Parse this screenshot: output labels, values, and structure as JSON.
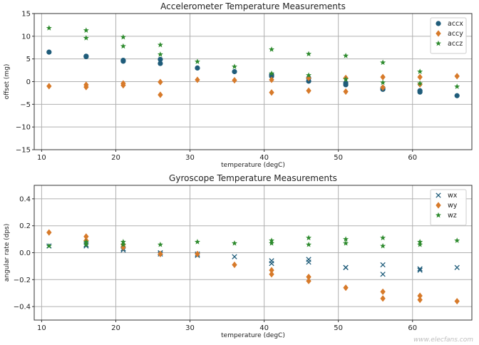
{
  "chart_data": [
    {
      "type": "scatter",
      "title": "Accelerometer Temperature Measurements",
      "xlabel": "temperature (degC)",
      "ylabel": "offset (mg)",
      "xlim": [
        9,
        68
      ],
      "ylim": [
        -15,
        15
      ],
      "xticks": [
        10,
        20,
        30,
        40,
        50,
        60
      ],
      "yticks": [
        15,
        10,
        5,
        0,
        -5,
        -10,
        -15
      ],
      "ytick_labels": [
        "15",
        "10",
        "5",
        "0",
        "−5",
        "−10",
        "−15"
      ],
      "legend_position": "top-right",
      "grid": true,
      "series": [
        {
          "name": "accx",
          "marker": "circle",
          "color": "#1f5c7a",
          "points": [
            [
              11,
              6.5
            ],
            [
              16,
              5.6
            ],
            [
              16,
              5.5
            ],
            [
              21,
              4.7
            ],
            [
              21,
              4.5
            ],
            [
              26,
              4.9
            ],
            [
              26,
              4.0
            ],
            [
              31,
              3.0
            ],
            [
              36,
              2.2
            ],
            [
              41,
              1.5
            ],
            [
              41,
              1.2
            ],
            [
              46,
              0.8
            ],
            [
              46,
              0.1
            ],
            [
              51,
              -0.3
            ],
            [
              51,
              -0.7
            ],
            [
              56,
              -1.4
            ],
            [
              56,
              -1.7
            ],
            [
              61,
              -2.0
            ],
            [
              61,
              -2.3
            ],
            [
              66,
              -3.1
            ]
          ]
        },
        {
          "name": "accy",
          "marker": "diamond",
          "color": "#d77a2a",
          "points": [
            [
              11,
              -1.0
            ],
            [
              16,
              -0.7
            ],
            [
              16,
              -1.2
            ],
            [
              21,
              -0.4
            ],
            [
              21,
              -0.8
            ],
            [
              26,
              -0.1
            ],
            [
              26,
              -2.9
            ],
            [
              31,
              0.4
            ],
            [
              36,
              0.3
            ],
            [
              41,
              0.4
            ],
            [
              41,
              -2.4
            ],
            [
              46,
              0.8
            ],
            [
              46,
              -2.0
            ],
            [
              51,
              0.8
            ],
            [
              51,
              -2.2
            ],
            [
              56,
              1.0
            ],
            [
              56,
              -1.3
            ],
            [
              61,
              1.0
            ],
            [
              61,
              -0.6
            ],
            [
              66,
              1.2
            ]
          ]
        },
        {
          "name": "accz",
          "marker": "star",
          "color": "#2e8b2e",
          "points": [
            [
              11,
              11.8
            ],
            [
              16,
              11.3
            ],
            [
              16,
              9.6
            ],
            [
              21,
              9.8
            ],
            [
              21,
              7.8
            ],
            [
              26,
              8.1
            ],
            [
              26,
              6.0
            ],
            [
              31,
              4.4
            ],
            [
              36,
              3.3
            ],
            [
              41,
              7.1
            ],
            [
              41,
              1.8
            ],
            [
              46,
              6.1
            ],
            [
              46,
              1.4
            ],
            [
              51,
              5.7
            ],
            [
              51,
              0.5
            ],
            [
              56,
              4.2
            ],
            [
              56,
              -0.2
            ],
            [
              61,
              2.2
            ],
            [
              61,
              -0.4
            ],
            [
              66,
              -1.1
            ]
          ]
        }
      ]
    },
    {
      "type": "scatter",
      "title": "Gyroscope Temperature Measurements",
      "xlabel": "temperature (degC)",
      "ylabel": "angular rate (dps)",
      "xlim": [
        9,
        68
      ],
      "ylim": [
        -0.5,
        0.5
      ],
      "xticks": [
        10,
        20,
        30,
        40,
        50,
        60
      ],
      "yticks": [
        0.4,
        0.2,
        0.0,
        -0.2,
        -0.4
      ],
      "ytick_labels": [
        "0.4",
        "0.2",
        "0.0",
        "−0.2",
        "−0.4"
      ],
      "legend_position": "top-right",
      "grid": true,
      "series": [
        {
          "name": "wx",
          "marker": "x",
          "color": "#1f5c7a",
          "points": [
            [
              11,
              0.05
            ],
            [
              16,
              0.06
            ],
            [
              16,
              0.05
            ],
            [
              21,
              0.03
            ],
            [
              21,
              0.02
            ],
            [
              26,
              0.0
            ],
            [
              26,
              -0.01
            ],
            [
              31,
              -0.01
            ],
            [
              31,
              -0.02
            ],
            [
              36,
              -0.03
            ],
            [
              41,
              -0.06
            ],
            [
              41,
              -0.08
            ],
            [
              46,
              -0.05
            ],
            [
              46,
              -0.07
            ],
            [
              51,
              -0.11
            ],
            [
              51,
              -0.11
            ],
            [
              56,
              -0.09
            ],
            [
              56,
              -0.16
            ],
            [
              61,
              -0.12
            ],
            [
              61,
              -0.13
            ],
            [
              66,
              -0.11
            ]
          ]
        },
        {
          "name": "wy",
          "marker": "diamond",
          "color": "#d77a2a",
          "points": [
            [
              11,
              0.15
            ],
            [
              16,
              0.12
            ],
            [
              16,
              0.09
            ],
            [
              21,
              0.06
            ],
            [
              21,
              0.04
            ],
            [
              26,
              -0.01
            ],
            [
              31,
              -0.01
            ],
            [
              36,
              -0.09
            ],
            [
              41,
              -0.13
            ],
            [
              41,
              -0.16
            ],
            [
              46,
              -0.18
            ],
            [
              46,
              -0.21
            ],
            [
              51,
              -0.26
            ],
            [
              56,
              -0.29
            ],
            [
              56,
              -0.34
            ],
            [
              61,
              -0.32
            ],
            [
              61,
              -0.35
            ],
            [
              66,
              -0.36
            ]
          ]
        },
        {
          "name": "wz",
          "marker": "star",
          "color": "#2e8b2e",
          "points": [
            [
              11,
              0.05
            ],
            [
              16,
              0.08
            ],
            [
              16,
              0.06
            ],
            [
              21,
              0.08
            ],
            [
              21,
              0.06
            ],
            [
              26,
              0.06
            ],
            [
              31,
              0.08
            ],
            [
              36,
              0.07
            ],
            [
              41,
              0.09
            ],
            [
              41,
              0.07
            ],
            [
              46,
              0.11
            ],
            [
              46,
              0.06
            ],
            [
              51,
              0.1
            ],
            [
              51,
              0.07
            ],
            [
              56,
              0.11
            ],
            [
              56,
              0.05
            ],
            [
              61,
              0.08
            ],
            [
              61,
              0.06
            ],
            [
              66,
              0.09
            ]
          ]
        }
      ]
    }
  ],
  "watermark": "www.elecfans.com"
}
